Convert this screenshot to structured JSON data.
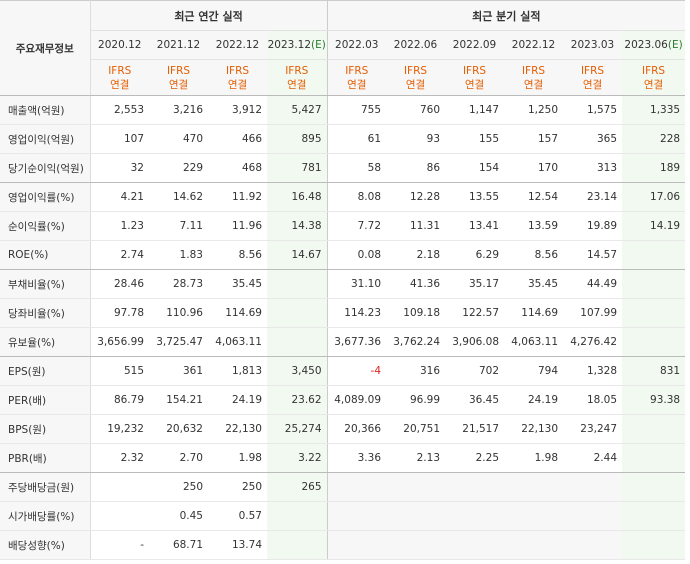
{
  "header": {
    "label": "주요재무정보",
    "annual_title": "최근 연간 실적",
    "quarter_title": "최근 분기 실적",
    "periods": [
      {
        "label": "2020.12",
        "est": ""
      },
      {
        "label": "2021.12",
        "est": ""
      },
      {
        "label": "2022.12",
        "est": ""
      },
      {
        "label": "2023.12",
        "est": "(E)"
      },
      {
        "label": "2022.03",
        "est": ""
      },
      {
        "label": "2022.06",
        "est": ""
      },
      {
        "label": "2022.09",
        "est": ""
      },
      {
        "label": "2022.12",
        "est": ""
      },
      {
        "label": "2023.03",
        "est": ""
      },
      {
        "label": "2023.06",
        "est": "(E)"
      }
    ],
    "type_top": "IFRS",
    "type_bottom": "연결"
  },
  "rows": [
    {
      "label": "매출액(억원)",
      "values": [
        "2,553",
        "3,216",
        "3,912",
        "5,427",
        "755",
        "760",
        "1,147",
        "1,250",
        "1,575",
        "1,335"
      ]
    },
    {
      "label": "영업이익(억원)",
      "values": [
        "107",
        "470",
        "466",
        "895",
        "61",
        "93",
        "155",
        "157",
        "365",
        "228"
      ]
    },
    {
      "label": "당기순이익(억원)",
      "values": [
        "32",
        "229",
        "468",
        "781",
        "58",
        "86",
        "154",
        "170",
        "313",
        "189"
      ]
    },
    {
      "label": "영업이익률(%)",
      "values": [
        "4.21",
        "14.62",
        "11.92",
        "16.48",
        "8.08",
        "12.28",
        "13.55",
        "12.54",
        "23.14",
        "17.06"
      ]
    },
    {
      "label": "순이익률(%)",
      "values": [
        "1.23",
        "7.11",
        "11.96",
        "14.38",
        "7.72",
        "11.31",
        "13.41",
        "13.59",
        "19.89",
        "14.19"
      ]
    },
    {
      "label": "ROE(%)",
      "values": [
        "2.74",
        "1.83",
        "8.56",
        "14.67",
        "0.08",
        "2.18",
        "6.29",
        "8.56",
        "14.57",
        ""
      ]
    },
    {
      "label": "부채비율(%)",
      "values": [
        "28.46",
        "28.73",
        "35.45",
        "",
        "31.10",
        "41.36",
        "35.17",
        "35.45",
        "44.49",
        ""
      ]
    },
    {
      "label": "당좌비율(%)",
      "values": [
        "97.78",
        "110.96",
        "114.69",
        "",
        "114.23",
        "109.18",
        "122.57",
        "114.69",
        "107.99",
        ""
      ]
    },
    {
      "label": "유보율(%)",
      "values": [
        "3,656.99",
        "3,725.47",
        "4,063.11",
        "",
        "3,677.36",
        "3,762.24",
        "3,906.08",
        "4,063.11",
        "4,276.42",
        ""
      ]
    },
    {
      "label": "EPS(원)",
      "values": [
        "515",
        "361",
        "1,813",
        "3,450",
        "-4",
        "316",
        "702",
        "794",
        "1,328",
        "831"
      ]
    },
    {
      "label": "PER(배)",
      "values": [
        "86.79",
        "154.21",
        "24.19",
        "23.62",
        "4,089.09",
        "96.99",
        "36.45",
        "24.19",
        "18.05",
        "93.38"
      ]
    },
    {
      "label": "BPS(원)",
      "values": [
        "19,232",
        "20,632",
        "22,130",
        "25,274",
        "20,366",
        "20,751",
        "21,517",
        "22,130",
        "23,247",
        ""
      ]
    },
    {
      "label": "PBR(배)",
      "values": [
        "2.32",
        "2.70",
        "1.98",
        "3.22",
        "3.36",
        "2.13",
        "2.25",
        "1.98",
        "2.44",
        ""
      ]
    },
    {
      "label": "주당배당금(원)",
      "values": [
        "",
        "250",
        "250",
        "265",
        "",
        "",
        "",
        "",
        "",
        ""
      ]
    },
    {
      "label": "시가배당률(%)",
      "values": [
        "",
        "0.45",
        "0.57",
        "",
        "",
        "",
        "",
        "",
        "",
        ""
      ]
    },
    {
      "label": "배당성향(%)",
      "values": [
        "-",
        "68.71",
        "13.74",
        "",
        "",
        "",
        "",
        "",
        "",
        ""
      ]
    }
  ],
  "colors": {
    "estimate_bg": "#f2f9f0",
    "ifrs_text": "#e65c00",
    "negative": "#e02020",
    "header_bg": "#f7f7f7"
  }
}
